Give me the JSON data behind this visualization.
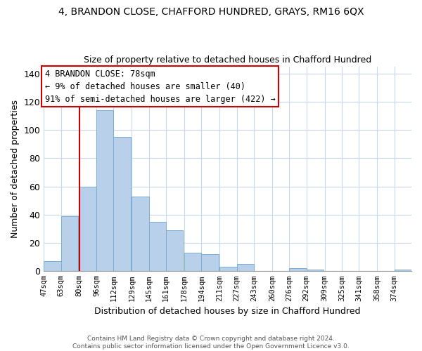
{
  "title1": "4, BRANDON CLOSE, CHAFFORD HUNDRED, GRAYS, RM16 6QX",
  "title2": "Size of property relative to detached houses in Chafford Hundred",
  "xlabel": "Distribution of detached houses by size in Chafford Hundred",
  "ylabel": "Number of detached properties",
  "bin_labels": [
    "47sqm",
    "63sqm",
    "80sqm",
    "96sqm",
    "112sqm",
    "129sqm",
    "145sqm",
    "161sqm",
    "178sqm",
    "194sqm",
    "211sqm",
    "227sqm",
    "243sqm",
    "260sqm",
    "276sqm",
    "292sqm",
    "309sqm",
    "325sqm",
    "341sqm",
    "358sqm",
    "374sqm"
  ],
  "bar_values": [
    7,
    39,
    60,
    114,
    95,
    53,
    35,
    29,
    13,
    12,
    3,
    5,
    0,
    0,
    2,
    1,
    0,
    0,
    0,
    0,
    1
  ],
  "bar_color": "#b8d0ea",
  "bar_edge_color": "#7aadd4",
  "ylim": [
    0,
    145
  ],
  "yticks": [
    0,
    20,
    40,
    60,
    80,
    100,
    120,
    140
  ],
  "property_line_x": 80,
  "annotation_title": "4 BRANDON CLOSE: 78sqm",
  "annotation_line1": "← 9% of detached houses are smaller (40)",
  "annotation_line2": "91% of semi-detached houses are larger (422) →",
  "annotation_box_color": "#ffffff",
  "annotation_box_edge": "#cc0000",
  "property_line_color": "#cc0000",
  "footnote1": "Contains HM Land Registry data © Crown copyright and database right 2024.",
  "footnote2": "Contains public sector information licensed under the Open Government Licence v3.0.",
  "bin_edges": [
    47,
    63,
    80,
    96,
    112,
    129,
    145,
    161,
    178,
    194,
    211,
    227,
    243,
    260,
    276,
    292,
    309,
    325,
    341,
    358,
    374
  ]
}
